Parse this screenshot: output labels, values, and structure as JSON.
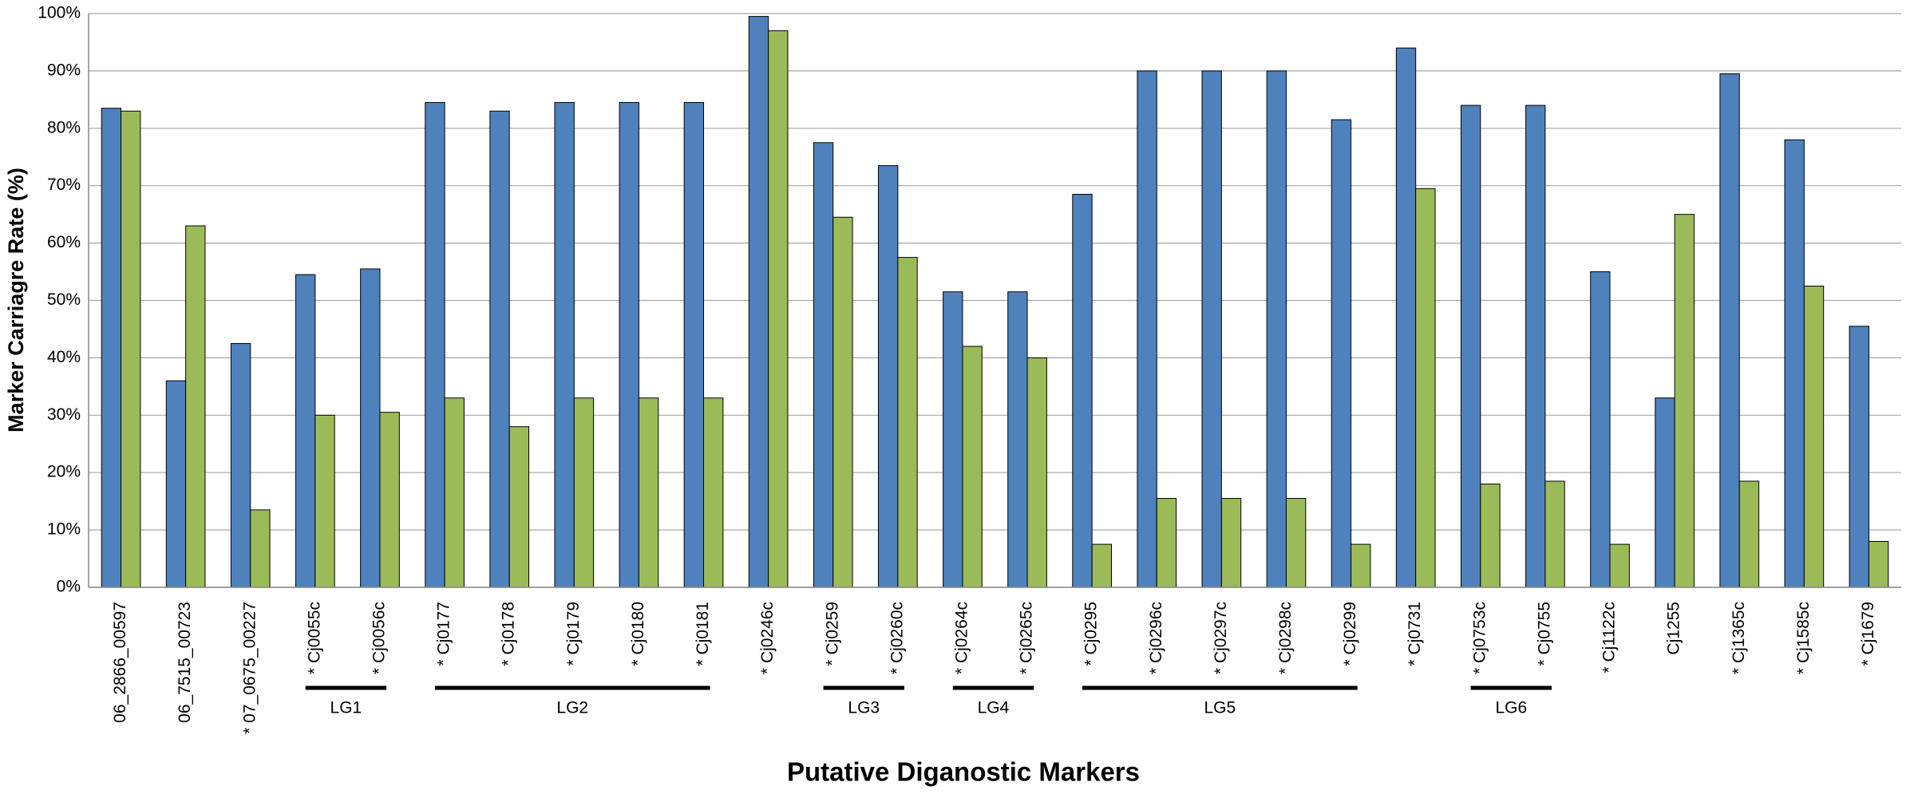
{
  "chart_data": {
    "type": "bar",
    "y_label": "Marker Carriagre Rate (%)",
    "x_label": "Putative Diganostic Markers",
    "categories": [
      "06_2866_00597",
      "06_7515_00723",
      "* 07_0675_00227",
      "* Cj0055c",
      "* Cj0056c",
      "* Cj0177",
      "* Cj0178",
      "* Cj0179",
      "* Cj0180",
      "* Cj0181",
      "* Cj0246c",
      "* Cj0259",
      "* Cj0260c",
      "* Cj0264c",
      "* Cj0265c",
      "* Cj0295",
      "* Cj0296c",
      "* Cj0297c",
      "* Cj0298c",
      "* Cj0299",
      "* Cj0731",
      "* Cj0753c",
      "* Cj0755",
      "* Cj1122c",
      "Cj1255",
      "* Cj1365c",
      "* Cj1585c",
      "* Cj1679"
    ],
    "series": [
      {
        "color": "#4f81bd",
        "values": [
          83.5,
          36,
          42.5,
          54.5,
          55.5,
          84.5,
          83,
          84.5,
          84.5,
          84.5,
          99.5,
          77.5,
          73.5,
          51.5,
          51.5,
          68.5,
          90,
          90,
          90,
          81.5,
          94,
          84,
          84,
          55,
          33,
          89.5,
          78,
          45.5
        ]
      },
      {
        "color": "#9bbb59",
        "values": [
          83,
          63,
          13.5,
          30,
          30.5,
          33,
          28,
          33,
          33,
          33,
          97,
          64.5,
          57.5,
          42,
          40,
          7.5,
          15.5,
          15.5,
          15.5,
          7.5,
          69.5,
          18,
          18.5,
          7.5,
          65,
          18.5,
          52.5,
          8
        ]
      }
    ],
    "groups": [
      {
        "label": "LG1",
        "from": "* Cj0055c",
        "to": "* Cj0056c"
      },
      {
        "label": "LG2",
        "from": "* Cj0177",
        "to": "* Cj0181"
      },
      {
        "label": "LG3",
        "from": "* Cj0259",
        "to": "* Cj0260c"
      },
      {
        "label": "LG4",
        "from": "* Cj0264c",
        "to": "* Cj0265c"
      },
      {
        "label": "LG5",
        "from": "* Cj0295",
        "to": "* Cj0299"
      },
      {
        "label": "LG6",
        "from": "* Cj0753c",
        "to": "* Cj0755"
      }
    ],
    "ylim": [
      0,
      100
    ],
    "yticks": [
      {
        "value": 0,
        "label": "0%"
      },
      {
        "value": 10,
        "label": "10%"
      },
      {
        "value": 20,
        "label": "20%"
      },
      {
        "value": 30,
        "label": "30%"
      },
      {
        "value": 40,
        "label": "40%"
      },
      {
        "value": 50,
        "label": "50%"
      },
      {
        "value": 60,
        "label": "60%"
      },
      {
        "value": 70,
        "label": "70%"
      },
      {
        "value": 80,
        "label": "80%"
      },
      {
        "value": 90,
        "label": "90%"
      },
      {
        "value": 100,
        "label": "100%"
      }
    ],
    "grid": true
  }
}
